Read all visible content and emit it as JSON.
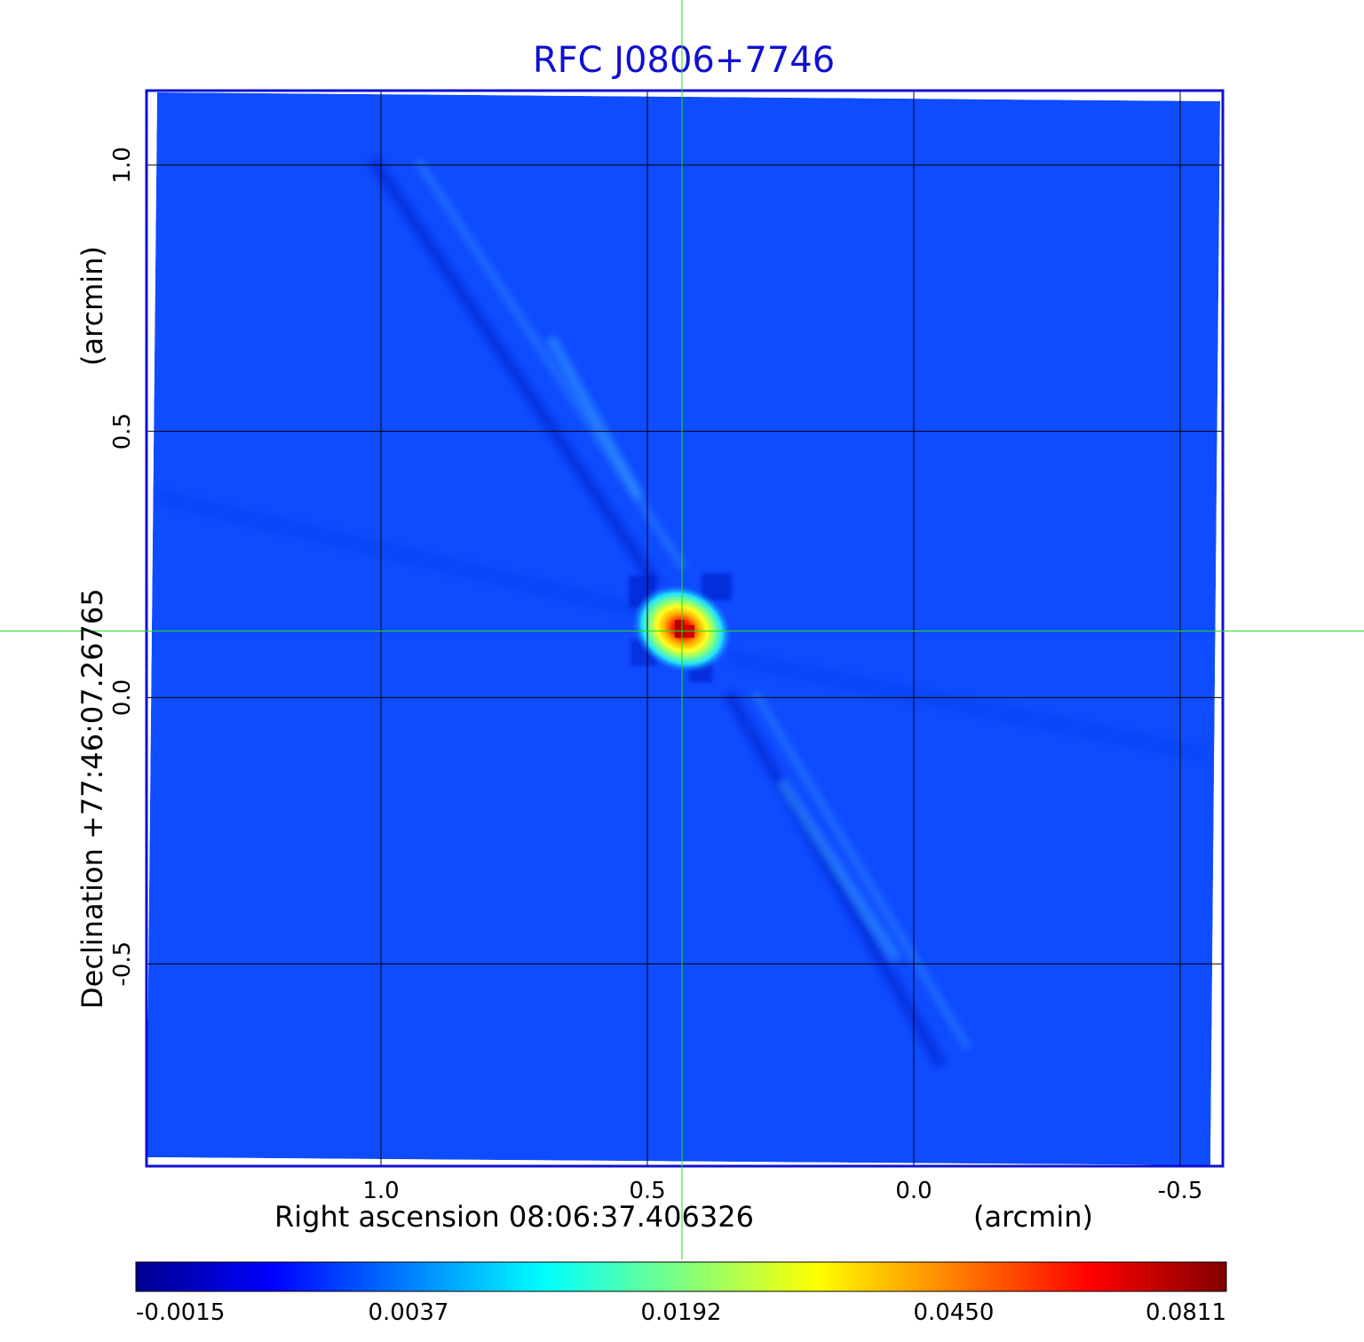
{
  "chart_data": {
    "type": "heatmap",
    "title": "RFC J0806+7746",
    "xlabel": "Right ascension  08:06:37.406326",
    "xunit": "(arcmin)",
    "ylabel": "Declination  +77:46:07.26765",
    "yunit": "(arcmin)",
    "x_ticks": [
      {
        "value": 1.0,
        "label": "1.0"
      },
      {
        "value": 0.5,
        "label": "0.5"
      },
      {
        "value": 0.0,
        "label": "0.0"
      },
      {
        "value": -0.5,
        "label": "-0.5"
      }
    ],
    "y_ticks": [
      {
        "value": 1.0,
        "label": "1.0"
      },
      {
        "value": 0.5,
        "label": "0.5"
      },
      {
        "value": 0.0,
        "label": "0.0"
      },
      {
        "value": -0.5,
        "label": "-0.5"
      }
    ],
    "xlim": [
      1.44,
      -0.58
    ],
    "ylim": [
      -0.88,
      1.14
    ],
    "x_reversed": true,
    "grid": true,
    "crosshair": {
      "x": 0.435,
      "y": 0.125
    },
    "source": {
      "x": 0.435,
      "y": 0.125,
      "peak": 0.0811
    },
    "colorbar": {
      "colormap": "jet",
      "ticks": [
        "-0.0015",
        "0.0037",
        "0.0192",
        "0.0450",
        "0.0811"
      ],
      "min": -0.0015,
      "max": 0.0811
    },
    "background_level": 0.001
  },
  "colors": {
    "title": "#1010d0",
    "frame": "#1010d0",
    "grid": "#000000",
    "crosshair": "#22dd22",
    "background_map": "#0f4cff"
  }
}
